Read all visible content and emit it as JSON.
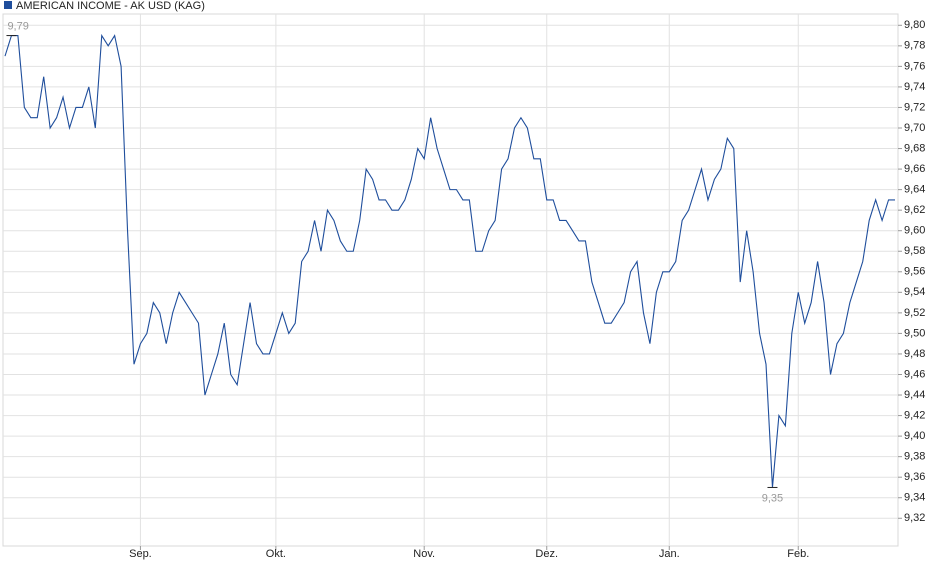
{
  "chart_data": {
    "type": "line",
    "series": [
      {
        "name": "AMERICAN INCOME - AK USD (KAG)",
        "color": "#1f4e9c",
        "values": [
          9.77,
          9.79,
          9.79,
          9.72,
          9.71,
          9.71,
          9.75,
          9.7,
          9.71,
          9.73,
          9.7,
          9.72,
          9.72,
          9.74,
          9.7,
          9.79,
          9.78,
          9.79,
          9.76,
          9.6,
          9.47,
          9.49,
          9.5,
          9.53,
          9.52,
          9.49,
          9.52,
          9.54,
          9.53,
          9.52,
          9.51,
          9.44,
          9.46,
          9.48,
          9.51,
          9.46,
          9.45,
          9.49,
          9.53,
          9.49,
          9.48,
          9.48,
          9.5,
          9.52,
          9.5,
          9.51,
          9.57,
          9.58,
          9.61,
          9.58,
          9.62,
          9.61,
          9.59,
          9.58,
          9.58,
          9.61,
          9.66,
          9.65,
          9.63,
          9.63,
          9.62,
          9.62,
          9.63,
          9.65,
          9.68,
          9.67,
          9.71,
          9.68,
          9.66,
          9.64,
          9.64,
          9.63,
          9.63,
          9.58,
          9.58,
          9.6,
          9.61,
          9.66,
          9.67,
          9.7,
          9.71,
          9.7,
          9.67,
          9.67,
          9.63,
          9.63,
          9.61,
          9.61,
          9.6,
          9.59,
          9.59,
          9.55,
          9.53,
          9.51,
          9.51,
          9.52,
          9.53,
          9.56,
          9.57,
          9.52,
          9.49,
          9.54,
          9.56,
          9.56,
          9.57,
          9.61,
          9.62,
          9.64,
          9.66,
          9.63,
          9.65,
          9.66,
          9.69,
          9.68,
          9.55,
          9.6,
          9.56,
          9.5,
          9.47,
          9.35,
          9.42,
          9.41,
          9.5,
          9.54,
          9.51,
          9.53,
          9.57,
          9.53,
          9.46,
          9.49,
          9.5,
          9.53,
          9.55,
          9.57,
          9.61,
          9.63,
          9.61,
          9.63,
          9.63
        ]
      }
    ],
    "annotations": [
      {
        "label": "9,79",
        "value": 9.79
      },
      {
        "label": "9,35",
        "value": 9.35
      }
    ],
    "xlim": [
      0,
      138
    ],
    "xticks": [
      {
        "value": 21,
        "label": "Sep."
      },
      {
        "value": 42,
        "label": "Okt."
      },
      {
        "value": 65,
        "label": "Nov."
      },
      {
        "value": 84,
        "label": "Dez."
      },
      {
        "value": 103,
        "label": "Jan."
      },
      {
        "value": 123,
        "label": "Feb."
      }
    ],
    "ylim": [
      9.293,
      9.811
    ],
    "yticks": [
      {
        "value": 9.32,
        "label": "9,32"
      },
      {
        "value": 9.34,
        "label": "9,34"
      },
      {
        "value": 9.36,
        "label": "9,36"
      },
      {
        "value": 9.38,
        "label": "9,38"
      },
      {
        "value": 9.4,
        "label": "9,40"
      },
      {
        "value": 9.42,
        "label": "9,42"
      },
      {
        "value": 9.44,
        "label": "9,44"
      },
      {
        "value": 9.46,
        "label": "9,46"
      },
      {
        "value": 9.48,
        "label": "9,48"
      },
      {
        "value": 9.5,
        "label": "9,50"
      },
      {
        "value": 9.52,
        "label": "9,52"
      },
      {
        "value": 9.54,
        "label": "9,54"
      },
      {
        "value": 9.56,
        "label": "9,56"
      },
      {
        "value": 9.58,
        "label": "9,58"
      },
      {
        "value": 9.6,
        "label": "9,60"
      },
      {
        "value": 9.62,
        "label": "9,62"
      },
      {
        "value": 9.64,
        "label": "9,64"
      },
      {
        "value": 9.66,
        "label": "9,66"
      },
      {
        "value": 9.68,
        "label": "9,68"
      },
      {
        "value": 9.7,
        "label": "9,70"
      },
      {
        "value": 9.72,
        "label": "9,72"
      },
      {
        "value": 9.74,
        "label": "9,74"
      },
      {
        "value": 9.76,
        "label": "9,76"
      },
      {
        "value": 9.78,
        "label": "9,78"
      },
      {
        "value": 9.8,
        "label": "9,80"
      }
    ],
    "grid": true,
    "legend": "top-left"
  }
}
